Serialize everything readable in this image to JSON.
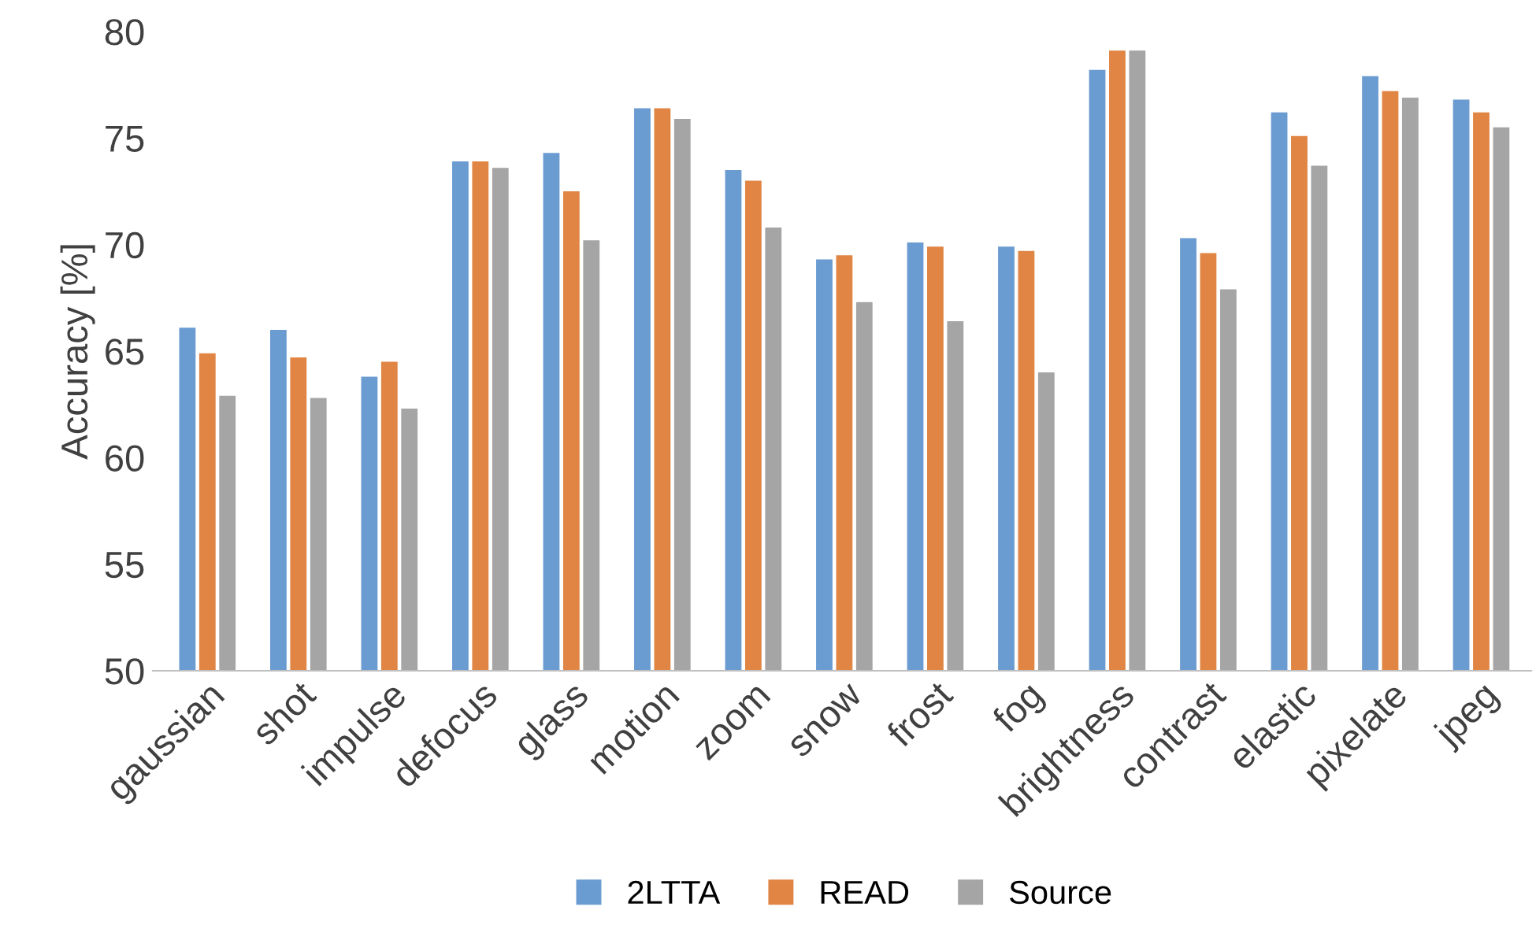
{
  "chart_data": {
    "type": "bar",
    "ylabel": "Accuracy [%]",
    "categories": [
      "gaussian",
      "shot",
      "impulse",
      "defocus",
      "glass",
      "motion",
      "zoom",
      "snow",
      "frost",
      "fog",
      "brightness",
      "contrast",
      "elastic",
      "pixelate",
      "jpeg"
    ],
    "series": [
      {
        "name": "2LTTA",
        "color": "#6a9bd1",
        "values": [
          66.1,
          66.0,
          63.8,
          73.9,
          74.3,
          76.4,
          73.5,
          69.3,
          70.1,
          69.9,
          78.2,
          70.3,
          76.2,
          77.9,
          76.8
        ]
      },
      {
        "name": "READ",
        "color": "#e08544",
        "values": [
          64.9,
          64.7,
          64.5,
          73.9,
          72.5,
          76.4,
          73.0,
          69.5,
          69.9,
          69.7,
          79.1,
          69.6,
          75.1,
          77.2,
          76.2
        ]
      },
      {
        "name": "Source",
        "color": "#a5a5a5",
        "values": [
          62.9,
          62.8,
          62.3,
          73.6,
          70.2,
          75.9,
          70.8,
          67.3,
          66.4,
          64.0,
          79.1,
          67.9,
          73.7,
          76.9,
          75.5
        ]
      }
    ],
    "ylim": [
      50,
      80
    ],
    "yticks": [
      50,
      55,
      60,
      65,
      70,
      75,
      80
    ],
    "grid": false,
    "legend": "bottom"
  }
}
